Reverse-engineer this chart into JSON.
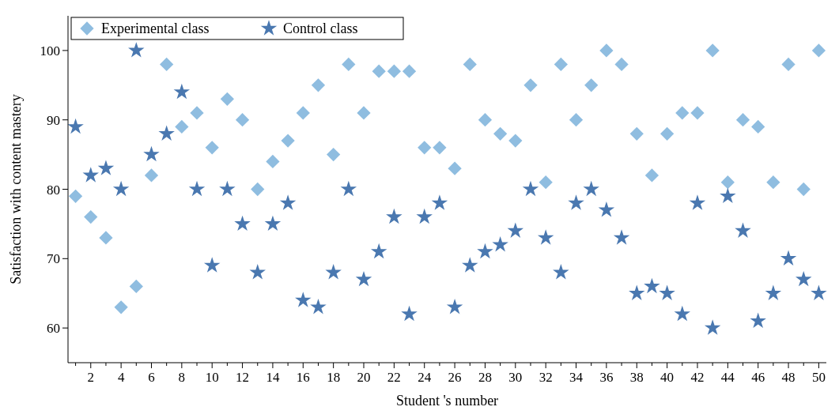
{
  "chart_data": {
    "type": "scatter",
    "xlabel": "Student 's number",
    "ylabel": "Satisfaction with content mastery",
    "x": [
      1,
      2,
      3,
      4,
      5,
      6,
      7,
      8,
      9,
      10,
      11,
      12,
      13,
      14,
      15,
      16,
      17,
      18,
      19,
      20,
      21,
      22,
      23,
      24,
      25,
      26,
      27,
      28,
      29,
      30,
      31,
      32,
      33,
      34,
      35,
      36,
      37,
      38,
      39,
      40,
      41,
      42,
      43,
      44,
      45,
      46,
      47,
      48,
      49,
      50
    ],
    "series": [
      {
        "name": "Experimental class",
        "color": "#8fbde0",
        "marker": "diamond",
        "values": [
          79,
          76,
          73,
          63,
          66,
          82,
          98,
          89,
          91,
          86,
          93,
          90,
          80,
          84,
          87,
          91,
          95,
          85,
          98,
          91,
          97,
          97,
          97,
          86,
          86,
          83,
          98,
          90,
          88,
          87,
          95,
          81,
          98,
          90,
          95,
          100,
          98,
          88,
          82,
          88,
          91,
          91,
          100,
          81,
          90,
          89,
          81,
          98,
          80,
          100
        ]
      },
      {
        "name": "Control class",
        "color": "#4a78b0",
        "marker": "star",
        "values": [
          89,
          82,
          83,
          80,
          100,
          85,
          88,
          94,
          80,
          69,
          80,
          75,
          68,
          75,
          78,
          64,
          63,
          68,
          80,
          67,
          71,
          76,
          62,
          76,
          78,
          63,
          69,
          71,
          72,
          74,
          80,
          73,
          68,
          78,
          80,
          77,
          73,
          65,
          66,
          65,
          62,
          78,
          60,
          79,
          74,
          61,
          65,
          70,
          67,
          65
        ]
      }
    ],
    "xlim": [
      0.5,
      50.5
    ],
    "xticks": [
      {
        "value": 1,
        "label": null
      },
      2,
      {
        "value": 3,
        "label": null
      },
      4,
      {
        "value": 5,
        "label": null
      },
      6,
      {
        "value": 7,
        "label": null
      },
      8,
      {
        "value": 9,
        "label": null
      },
      10,
      {
        "value": 11,
        "label": null
      },
      12,
      {
        "value": 13,
        "label": null
      },
      14,
      {
        "value": 15,
        "label": null
      },
      16,
      {
        "value": 17,
        "label": null
      },
      18,
      {
        "value": 19,
        "label": null
      },
      20,
      {
        "value": 21,
        "label": null
      },
      22,
      {
        "value": 23,
        "label": null
      },
      24,
      {
        "value": 25,
        "label": null
      },
      26,
      {
        "value": 27,
        "label": null
      },
      28,
      {
        "value": 29,
        "label": null
      },
      30,
      {
        "value": 31,
        "label": null
      },
      32,
      {
        "value": 33,
        "label": null
      },
      34,
      {
        "value": 35,
        "label": null
      },
      36,
      {
        "value": 37,
        "label": null
      },
      38,
      {
        "value": 39,
        "label": null
      },
      40,
      {
        "value": 41,
        "label": null
      },
      42,
      {
        "value": 43,
        "label": null
      },
      44,
      {
        "value": 45,
        "label": null
      },
      46,
      {
        "value": 47,
        "label": null
      },
      48,
      {
        "value": 49,
        "label": null
      },
      50
    ],
    "ylim": [
      55,
      105
    ],
    "yticks": [
      60,
      70,
      80,
      90,
      100
    ],
    "grid": false,
    "legend": "top left"
  }
}
